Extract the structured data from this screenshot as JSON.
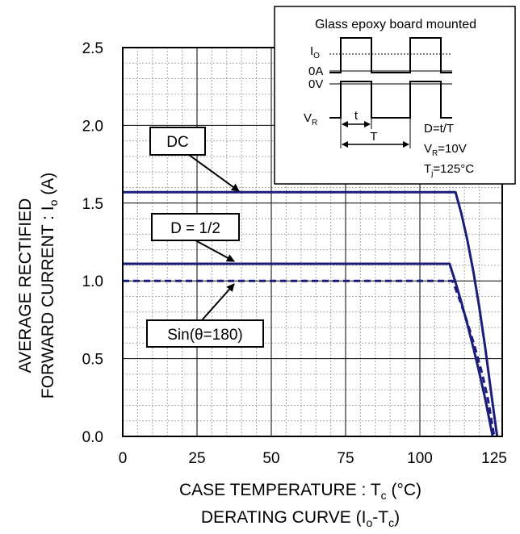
{
  "chart_data": {
    "type": "line",
    "xlabel": "CASE TEMPERATURE : T",
    "xlabel_sub": "c",
    "xlabel_unit": " (°C)",
    "ylabel_line1": "AVERAGE RECTIFIED",
    "ylabel_line2": "FORWARD CURRENT : I",
    "ylabel_sub": "o",
    "ylabel_unit": " (A)",
    "caption_pre": "DERATING CURVE (I",
    "caption_sub1": "o",
    "caption_mid": "-T",
    "caption_sub2": "c",
    "caption_post": ")",
    "xlim": [
      0,
      125
    ],
    "ylim": [
      0,
      2.5
    ],
    "x_ticks": [
      "0",
      "25",
      "50",
      "75",
      "100",
      "125"
    ],
    "y_ticks": [
      "0.0",
      "0.5",
      "1.0",
      "1.5",
      "2.0",
      "2.5"
    ],
    "grid": true,
    "series": [
      {
        "name": "DC",
        "style": "solid",
        "color": "#1c1c7a",
        "x": [
          0,
          112,
          114,
          116,
          118,
          120,
          122,
          124,
          126
        ],
        "y": [
          1.57,
          1.57,
          1.43,
          1.26,
          1.06,
          0.83,
          0.57,
          0.28,
          0.0
        ]
      },
      {
        "name": "D = 1/2",
        "style": "solid",
        "color": "#1c1c7a",
        "x": [
          0,
          110,
          112,
          114,
          116,
          118,
          120,
          122,
          124.5
        ],
        "y": [
          1.11,
          1.11,
          0.99,
          0.86,
          0.72,
          0.57,
          0.41,
          0.24,
          0.0
        ]
      },
      {
        "name": "Sin(θ=180)",
        "style": "dashed",
        "color": "#1c1c7a",
        "x": [
          0,
          111,
          113,
          115,
          117,
          119,
          121,
          123,
          125
        ],
        "y": [
          1.0,
          1.0,
          0.9,
          0.79,
          0.67,
          0.54,
          0.4,
          0.23,
          0.0
        ]
      }
    ]
  },
  "inset": {
    "title": "Glass epoxy board mounted",
    "io_label": "I",
    "io_sub": "O",
    "zero_a": "0A",
    "zero_v": "0V",
    "vr_label": "V",
    "vr_sub": "R",
    "t_label": "t",
    "T_label": "T",
    "d_formula": "D=t/T",
    "vr_value_pre": "V",
    "vr_value_sub": "R",
    "vr_value_post": "=10V",
    "tj_pre": "T",
    "tj_sub": "j",
    "tj_post": "=125°C"
  },
  "colors": {
    "series": "#1c1c7a",
    "grid_minor": "#a8a8a8",
    "grid_major": "#000000"
  }
}
